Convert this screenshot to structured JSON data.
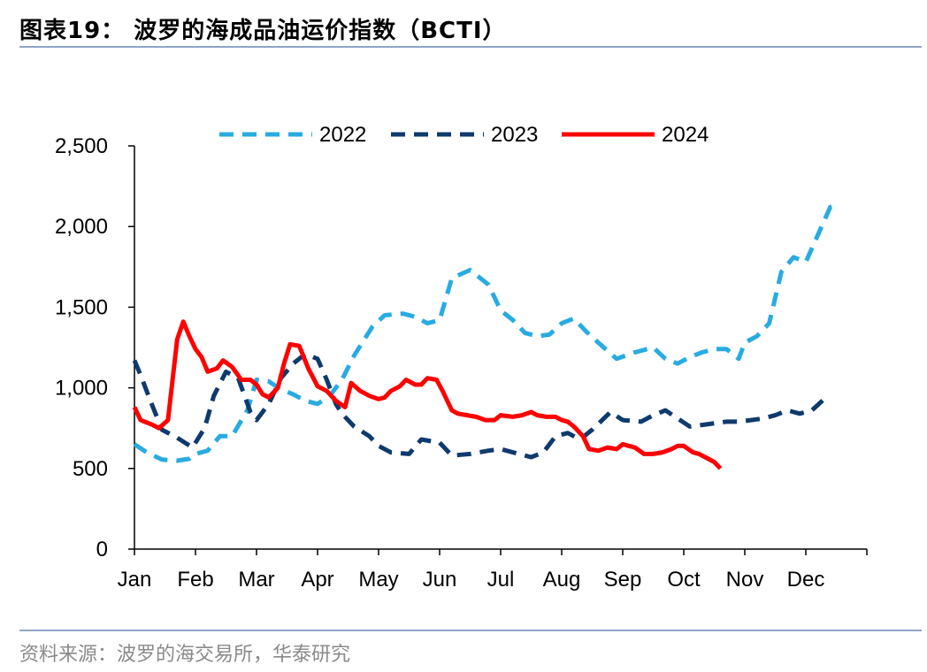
{
  "header": {
    "title": "图表19：  波罗的海成品油运价指数（BCTI）"
  },
  "footer": {
    "source": "资料来源：波罗的海交易所，华泰研究"
  },
  "colors": {
    "s2022": "#29abe2",
    "s2023": "#0e3a6e",
    "s2024": "#ff0000",
    "rule": "#8ea5c8",
    "axis": "#000000"
  },
  "chart_data": {
    "type": "line",
    "title": "",
    "xlabel": "",
    "ylabel": "",
    "ylim": [
      0,
      2500
    ],
    "yticks": [
      0,
      500,
      1000,
      1500,
      2000,
      2500
    ],
    "ytick_labels": [
      "0",
      "500",
      "1,000",
      "1,500",
      "2,000",
      "2,500"
    ],
    "xlim": [
      1,
      13
    ],
    "categories": [
      "Jan",
      "Feb",
      "Mar",
      "Apr",
      "May",
      "Jun",
      "Jul",
      "Aug",
      "Sep",
      "Oct",
      "Nov",
      "Dec"
    ],
    "grid": false,
    "legend": "top-center",
    "series": [
      {
        "name": "2022",
        "style": "dashed",
        "points": [
          [
            1.0,
            650
          ],
          [
            1.2,
            600
          ],
          [
            1.45,
            555
          ],
          [
            1.7,
            548
          ],
          [
            1.9,
            560
          ],
          [
            2.0,
            590
          ],
          [
            2.2,
            610
          ],
          [
            2.4,
            700
          ],
          [
            2.6,
            700
          ],
          [
            2.85,
            860
          ],
          [
            3.0,
            1050
          ],
          [
            3.2,
            1040
          ],
          [
            3.4,
            990
          ],
          [
            3.6,
            960
          ],
          [
            3.8,
            920
          ],
          [
            4.0,
            900
          ],
          [
            4.2,
            950
          ],
          [
            4.4,
            1050
          ],
          [
            4.6,
            1200
          ],
          [
            4.9,
            1380
          ],
          [
            5.1,
            1450
          ],
          [
            5.4,
            1460
          ],
          [
            5.6,
            1440
          ],
          [
            5.8,
            1400
          ],
          [
            6.0,
            1420
          ],
          [
            6.2,
            1680
          ],
          [
            6.5,
            1730
          ],
          [
            6.8,
            1640
          ],
          [
            7.0,
            1480
          ],
          [
            7.2,
            1420
          ],
          [
            7.4,
            1340
          ],
          [
            7.6,
            1320
          ],
          [
            7.8,
            1330
          ],
          [
            8.0,
            1400
          ],
          [
            8.2,
            1430
          ],
          [
            8.4,
            1350
          ],
          [
            8.6,
            1280
          ],
          [
            8.9,
            1180
          ],
          [
            9.2,
            1220
          ],
          [
            9.5,
            1250
          ],
          [
            9.7,
            1180
          ],
          [
            9.9,
            1150
          ],
          [
            10.1,
            1190
          ],
          [
            10.3,
            1220
          ],
          [
            10.5,
            1240
          ],
          [
            10.7,
            1240
          ],
          [
            10.9,
            1180
          ],
          [
            11.0,
            1280
          ],
          [
            11.2,
            1320
          ],
          [
            11.4,
            1400
          ],
          [
            11.6,
            1720
          ],
          [
            11.8,
            1810
          ],
          [
            12.0,
            1780
          ],
          [
            12.2,
            1950
          ],
          [
            12.4,
            2120
          ],
          [
            12.5,
            2130
          ]
        ]
      },
      {
        "name": "2023",
        "style": "dashed",
        "points": [
          [
            1.0,
            1170
          ],
          [
            1.1,
            1080
          ],
          [
            1.25,
            930
          ],
          [
            1.45,
            740
          ],
          [
            1.7,
            690
          ],
          [
            1.95,
            630
          ],
          [
            2.15,
            750
          ],
          [
            2.3,
            950
          ],
          [
            2.5,
            1100
          ],
          [
            2.7,
            1060
          ],
          [
            2.9,
            850
          ],
          [
            3.0,
            800
          ],
          [
            3.2,
            900
          ],
          [
            3.4,
            1060
          ],
          [
            3.6,
            1150
          ],
          [
            3.8,
            1210
          ],
          [
            4.0,
            1180
          ],
          [
            4.15,
            1050
          ],
          [
            4.3,
            900
          ],
          [
            4.4,
            840
          ],
          [
            4.6,
            760
          ],
          [
            4.85,
            700
          ],
          [
            5.0,
            640
          ],
          [
            5.2,
            600
          ],
          [
            5.5,
            590
          ],
          [
            5.7,
            680
          ],
          [
            6.0,
            660
          ],
          [
            6.2,
            580
          ],
          [
            6.5,
            590
          ],
          [
            6.8,
            610
          ],
          [
            7.0,
            620
          ],
          [
            7.3,
            590
          ],
          [
            7.5,
            570
          ],
          [
            7.7,
            600
          ],
          [
            7.9,
            700
          ],
          [
            8.1,
            720
          ],
          [
            8.3,
            680
          ],
          [
            8.5,
            740
          ],
          [
            8.8,
            850
          ],
          [
            9.0,
            800
          ],
          [
            9.3,
            790
          ],
          [
            9.5,
            830
          ],
          [
            9.7,
            860
          ],
          [
            9.9,
            810
          ],
          [
            10.1,
            760
          ],
          [
            10.3,
            770
          ],
          [
            10.5,
            780
          ],
          [
            10.7,
            790
          ],
          [
            10.9,
            790
          ],
          [
            11.1,
            800
          ],
          [
            11.3,
            810
          ],
          [
            11.5,
            830
          ],
          [
            11.7,
            860
          ],
          [
            11.9,
            840
          ],
          [
            12.1,
            860
          ],
          [
            12.3,
            930
          ],
          [
            12.4,
            940
          ]
        ]
      },
      {
        "name": "2024",
        "style": "solid",
        "points": [
          [
            1.0,
            880
          ],
          [
            1.1,
            800
          ],
          [
            1.3,
            770
          ],
          [
            1.4,
            750
          ],
          [
            1.55,
            800
          ],
          [
            1.7,
            1300
          ],
          [
            1.8,
            1410
          ],
          [
            1.9,
            1320
          ],
          [
            2.0,
            1240
          ],
          [
            2.1,
            1190
          ],
          [
            2.2,
            1100
          ],
          [
            2.35,
            1120
          ],
          [
            2.45,
            1170
          ],
          [
            2.6,
            1130
          ],
          [
            2.75,
            1050
          ],
          [
            2.9,
            1050
          ],
          [
            3.0,
            1020
          ],
          [
            3.1,
            960
          ],
          [
            3.2,
            940
          ],
          [
            3.35,
            1000
          ],
          [
            3.45,
            1150
          ],
          [
            3.55,
            1270
          ],
          [
            3.7,
            1260
          ],
          [
            3.85,
            1120
          ],
          [
            4.0,
            1010
          ],
          [
            4.15,
            980
          ],
          [
            4.3,
            920
          ],
          [
            4.45,
            880
          ],
          [
            4.55,
            1030
          ],
          [
            4.7,
            980
          ],
          [
            4.85,
            950
          ],
          [
            5.0,
            930
          ],
          [
            5.1,
            940
          ],
          [
            5.2,
            980
          ],
          [
            5.35,
            1010
          ],
          [
            5.45,
            1050
          ],
          [
            5.6,
            1020
          ],
          [
            5.7,
            1020
          ],
          [
            5.8,
            1060
          ],
          [
            5.95,
            1050
          ],
          [
            6.05,
            980
          ],
          [
            6.2,
            860
          ],
          [
            6.3,
            840
          ],
          [
            6.45,
            830
          ],
          [
            6.6,
            820
          ],
          [
            6.75,
            800
          ],
          [
            6.9,
            800
          ],
          [
            7.0,
            830
          ],
          [
            7.2,
            820
          ],
          [
            7.35,
            830
          ],
          [
            7.5,
            850
          ],
          [
            7.6,
            830
          ],
          [
            7.75,
            820
          ],
          [
            7.9,
            820
          ],
          [
            8.0,
            800
          ],
          [
            8.1,
            790
          ],
          [
            8.2,
            760
          ],
          [
            8.35,
            700
          ],
          [
            8.45,
            620
          ],
          [
            8.6,
            610
          ],
          [
            8.75,
            630
          ],
          [
            8.9,
            620
          ],
          [
            9.0,
            650
          ],
          [
            9.1,
            640
          ],
          [
            9.2,
            630
          ],
          [
            9.35,
            590
          ],
          [
            9.5,
            590
          ],
          [
            9.65,
            600
          ],
          [
            9.8,
            620
          ],
          [
            9.9,
            640
          ],
          [
            10.0,
            640
          ],
          [
            10.15,
            600
          ],
          [
            10.25,
            590
          ],
          [
            10.35,
            570
          ],
          [
            10.5,
            540
          ],
          [
            10.6,
            500
          ]
        ]
      }
    ]
  }
}
